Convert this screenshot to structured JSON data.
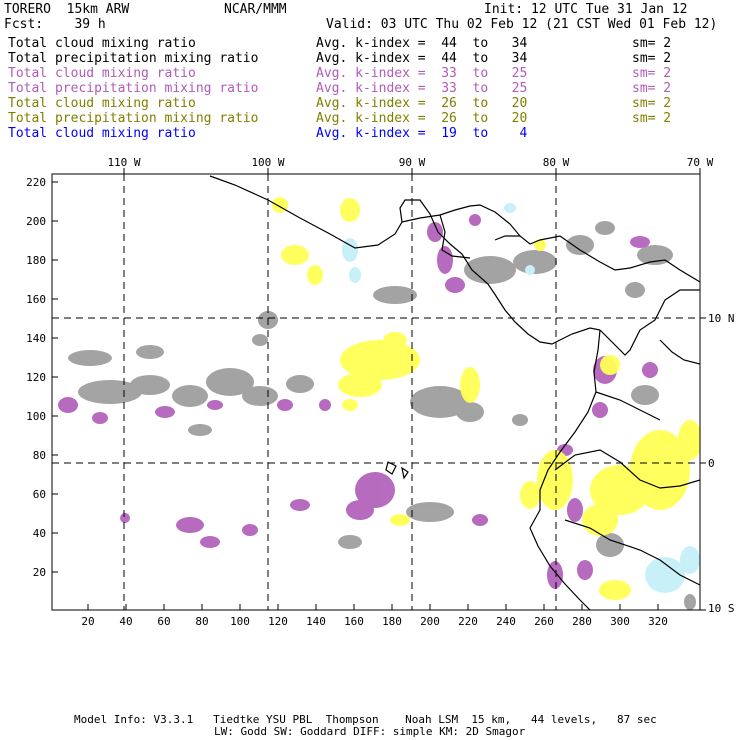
{
  "header": {
    "model": "TORERO  15km ARW",
    "org": "NCAR/MMM",
    "init": "Init: 12 UTC Tue 31 Jan 12",
    "fcst": "Fcst:    39 h",
    "valid": "Valid: 03 UTC Thu 02 Feb 12 (21 CST Wed 01 Feb 12)"
  },
  "legend_rows": [
    {
      "field": "Total cloud mixing ratio",
      "kindex": "Avg. k-index =  44  to   34",
      "sm": "sm= 2",
      "color": "#000000"
    },
    {
      "field": "Total precipitation mixing ratio",
      "kindex": "Avg. k-index =  44  to   34",
      "sm": "sm= 2",
      "color": "#000000"
    },
    {
      "field": "Total cloud mixing ratio",
      "kindex": "Avg. k-index =  33  to   25",
      "sm": "sm= 2",
      "color": "#b05cb8"
    },
    {
      "field": "Total precipitation mixing ratio",
      "kindex": "Avg. k-index =  33  to   25",
      "sm": "sm= 2",
      "color": "#b05cb8"
    },
    {
      "field": "Total cloud mixing ratio",
      "kindex": "Avg. k-index =  26  to   20",
      "sm": "sm= 2",
      "color": "#808000"
    },
    {
      "field": "Total precipitation mixing ratio",
      "kindex": "Avg. k-index =  26  to   20",
      "sm": "sm= 2",
      "color": "#808000"
    },
    {
      "field": "Total cloud mixing ratio",
      "kindex": "Avg. k-index =  19  to    4",
      "sm": "",
      "color": "#0000ff"
    }
  ],
  "map": {
    "top_labels": [
      "110 W",
      "100 W",
      "90 W",
      "80 W",
      "70 W"
    ],
    "right_labels": [
      "10 N",
      "0",
      "10 S"
    ],
    "y_ticks": [
      "20",
      "40",
      "60",
      "80",
      "100",
      "120",
      "140",
      "160",
      "180",
      "200",
      "220"
    ],
    "x_ticks": [
      "20",
      "40",
      "60",
      "80",
      "100",
      "120",
      "140",
      "160",
      "180",
      "200",
      "220",
      "240",
      "260",
      "280",
      "300",
      "320"
    ],
    "colors": {
      "gray": "#9a9a9a",
      "purple": "#b05cb8",
      "yellow": "#ffff55",
      "cyan": "#c8f0f8",
      "coast": "#000000",
      "grid": "#000000"
    }
  },
  "footer": {
    "line1": "Model Info: V3.3.1   Tiedtke YSU PBL  Thompson    Noah LSM  15 km,   44 levels,   87 sec",
    "line2": "LW: Godd SW: Goddard DIFF: simple KM: 2D Smagor"
  }
}
